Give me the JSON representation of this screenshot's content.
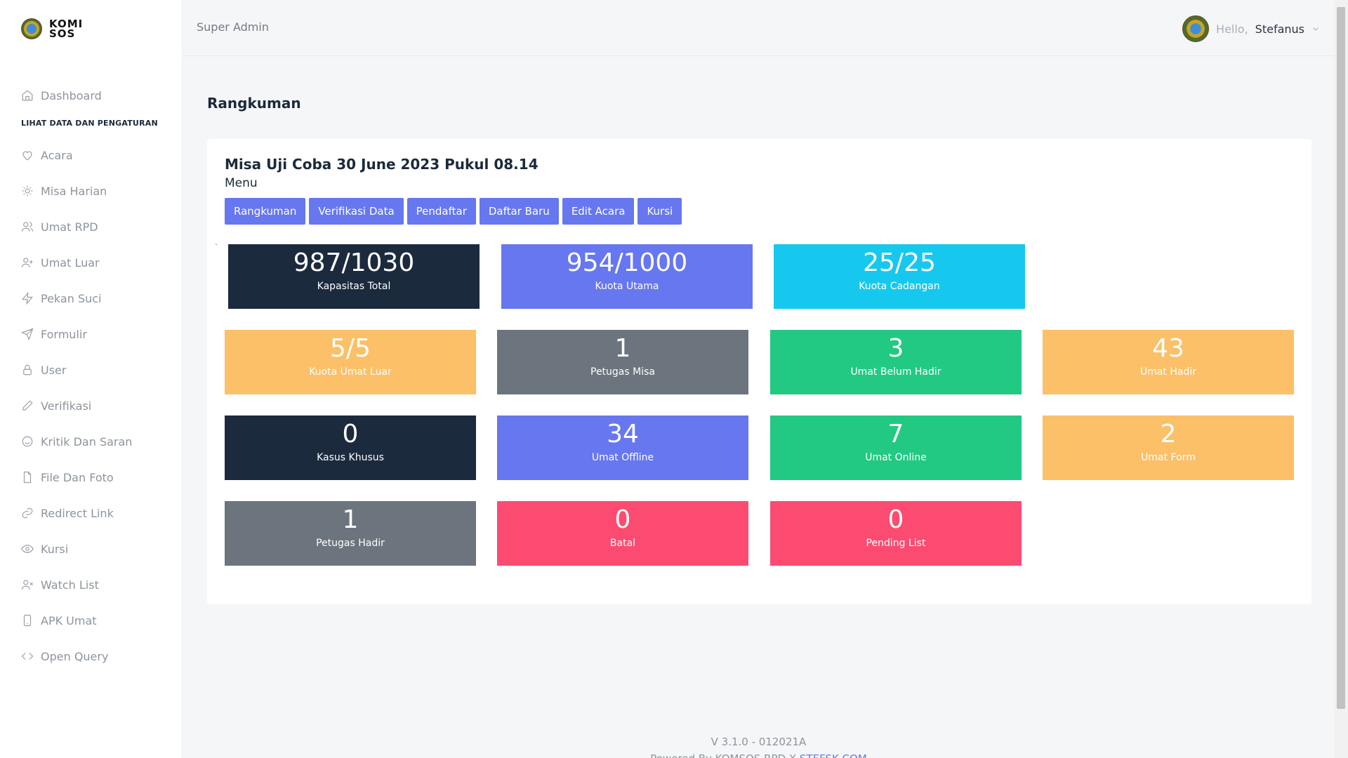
{
  "logo": {
    "text_top": "KOMI",
    "text_bottom": "SOS"
  },
  "sidebar": {
    "section_label": "LIHAT DATA DAN PENGATURAN",
    "items": [
      {
        "label": "Dashboard",
        "icon": "home-icon"
      },
      {
        "label": "Acara",
        "icon": "heart-icon"
      },
      {
        "label": "Misa Harian",
        "icon": "sun-icon"
      },
      {
        "label": "Umat RPD",
        "icon": "users-icon"
      },
      {
        "label": "Umat Luar",
        "icon": "user-plus-icon"
      },
      {
        "label": "Pekan Suci",
        "icon": "zap-icon"
      },
      {
        "label": "Formulir",
        "icon": "send-icon"
      },
      {
        "label": "User",
        "icon": "lock-icon"
      },
      {
        "label": "Verifikasi",
        "icon": "pen-icon"
      },
      {
        "label": "Kritik Dan Saran",
        "icon": "smile-icon"
      },
      {
        "label": "File Dan Foto",
        "icon": "file-icon"
      },
      {
        "label": "Redirect Link",
        "icon": "link-icon"
      },
      {
        "label": "Kursi",
        "icon": "eye-icon"
      },
      {
        "label": "Watch List",
        "icon": "user-x-icon"
      },
      {
        "label": "APK Umat",
        "icon": "phone-icon"
      },
      {
        "label": "Open Query",
        "icon": "code-icon"
      }
    ]
  },
  "header": {
    "role": "Super Admin",
    "hello": "Hello,",
    "username": "Stefanus"
  },
  "main": {
    "page_title": "Rangkuman",
    "event_title": "Misa Uji Coba 30 June 2023 Pukul 08.14",
    "menu_label": "Menu",
    "buttons": [
      "Rangkuman",
      "Verifikasi Data",
      "Pendaftar",
      "Daftar Baru",
      "Edit Acara",
      "Kursi"
    ],
    "tick": "`",
    "stats": [
      {
        "value": "987/1030",
        "label": "Kapasitas Total",
        "color": "#1c2a3e"
      },
      {
        "value": "954/1000",
        "label": "Kuota Utama",
        "color": "#6777ef"
      },
      {
        "value": "25/25",
        "label": "Kuota Cadangan",
        "color": "#17c8ee"
      },
      {
        "value": "5/5",
        "label": "Kuota Umat Luar",
        "color": "#fbc068"
      },
      {
        "value": "1",
        "label": "Petugas Misa",
        "color": "#6c757d"
      },
      {
        "value": "3",
        "label": "Umat Belum Hadir",
        "color": "#22c983"
      },
      {
        "value": "43",
        "label": "Umat Hadir",
        "color": "#fbc068"
      },
      {
        "value": "0",
        "label": "Kasus Khusus",
        "color": "#1c2a3e"
      },
      {
        "value": "34",
        "label": "Umat Offline",
        "color": "#6777ef"
      },
      {
        "value": "7",
        "label": "Umat Online",
        "color": "#22c983"
      },
      {
        "value": "2",
        "label": "Umat Form",
        "color": "#fbc068"
      },
      {
        "value": "1",
        "label": "Petugas Hadir",
        "color": "#6c757d"
      },
      {
        "value": "0",
        "label": "Batal",
        "color": "#fc4b71"
      },
      {
        "value": "0",
        "label": "Pending List",
        "color": "#fc4b71"
      }
    ]
  },
  "footer": {
    "version": "V 3.1.0 - 012021A",
    "powered": "Powered By KOMSOS RPD X",
    "powered_link": "STEFSK.COM"
  }
}
